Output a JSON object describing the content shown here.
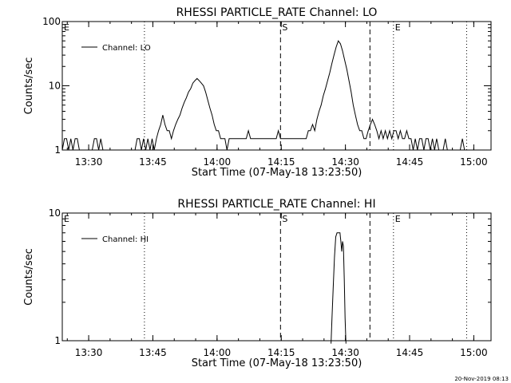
{
  "footer_text": "20-Nov-2019 08:13",
  "chart_data": [
    {
      "type": "line",
      "title": "RHESSI PARTICLE_RATE Channel: LO",
      "xlabel": "Start Time (07-May-18 13:23:50)",
      "ylabel": "Counts/sec",
      "x_unit": "minutes after 13:23:50",
      "xlim": [
        0,
        100.2
      ],
      "ylim": [
        1,
        100
      ],
      "yscale": "log",
      "x_tick_labels": [
        "13:30",
        "13:45",
        "14:00",
        "14:15",
        "14:30",
        "14:45",
        "15:00"
      ],
      "x_tick_values": [
        6.17,
        21.17,
        36.17,
        51.17,
        66.17,
        81.17,
        96.17
      ],
      "y_tick_labels": [
        "1",
        "10",
        "100"
      ],
      "y_tick_values": [
        1,
        10,
        100
      ],
      "legend": {
        "label": "Channel: LO",
        "placement": "top-left"
      },
      "markers": [
        {
          "label": "E",
          "x": 0,
          "style": "none"
        },
        {
          "label": "",
          "x": 19.2,
          "style": "dotted"
        },
        {
          "label": "S",
          "x": 51.0,
          "style": "dashed"
        },
        {
          "label": "",
          "x": 71.9,
          "style": "dashed"
        },
        {
          "label": "E",
          "x": 77.4,
          "style": "dotted"
        },
        {
          "label": "",
          "x": 94.5,
          "style": "dotted"
        }
      ],
      "series": [
        {
          "values": [
            [
              0,
              1
            ],
            [
              0.5,
              1.5
            ],
            [
              1,
              1.5
            ],
            [
              1.5,
              1
            ],
            [
              2,
              1.5
            ],
            [
              2.5,
              1
            ],
            [
              3,
              1.5
            ],
            [
              3.5,
              1.5
            ],
            [
              4,
              1
            ],
            [
              5,
              1
            ],
            [
              6,
              1
            ],
            [
              7,
              1
            ],
            [
              7.5,
              1.5
            ],
            [
              8,
              1.5
            ],
            [
              8.5,
              1
            ],
            [
              9,
              1.5
            ],
            [
              9.5,
              1
            ],
            [
              10,
              1
            ],
            [
              11,
              1
            ],
            [
              12,
              1
            ],
            [
              13,
              1
            ],
            [
              14,
              1
            ],
            [
              15,
              1
            ],
            [
              16,
              1
            ],
            [
              17,
              1
            ],
            [
              17.5,
              1.5
            ],
            [
              18,
              1.5
            ],
            [
              18.5,
              1
            ],
            [
              19,
              1.5
            ],
            [
              19.5,
              1
            ],
            [
              20,
              1.5
            ],
            [
              20.5,
              1
            ],
            [
              21,
              1.5
            ],
            [
              21.5,
              1
            ],
            [
              22,
              1.5
            ],
            [
              22.5,
              2
            ],
            [
              23,
              2.5
            ],
            [
              23.5,
              3.5
            ],
            [
              24,
              2.5
            ],
            [
              24.5,
              2
            ],
            [
              25,
              2
            ],
            [
              25.5,
              1.5
            ],
            [
              26,
              2
            ],
            [
              26.5,
              2.5
            ],
            [
              27,
              3
            ],
            [
              27.5,
              3.5
            ],
            [
              28,
              4.5
            ],
            [
              28.5,
              5.5
            ],
            [
              29,
              6.5
            ],
            [
              29.5,
              8
            ],
            [
              30,
              9
            ],
            [
              30.5,
              11
            ],
            [
              31,
              12
            ],
            [
              31.5,
              13
            ],
            [
              32,
              12
            ],
            [
              32.5,
              11
            ],
            [
              33,
              10
            ],
            [
              33.5,
              8
            ],
            [
              34,
              6
            ],
            [
              34.5,
              4.5
            ],
            [
              35,
              3.5
            ],
            [
              35.5,
              2.5
            ],
            [
              36,
              2
            ],
            [
              36.5,
              2
            ],
            [
              37,
              1.5
            ],
            [
              37.5,
              1.5
            ],
            [
              38,
              1.5
            ],
            [
              38.5,
              1
            ],
            [
              39,
              1.5
            ],
            [
              40,
              1.5
            ],
            [
              41,
              1.5
            ],
            [
              42,
              1.5
            ],
            [
              43,
              1.5
            ],
            [
              43.5,
              2
            ],
            [
              44,
              1.5
            ],
            [
              45,
              1.5
            ],
            [
              46,
              1.5
            ],
            [
              47,
              1.5
            ],
            [
              48,
              1.5
            ],
            [
              49,
              1.5
            ],
            [
              50,
              1.5
            ],
            [
              50.5,
              2
            ],
            [
              51,
              1.5
            ],
            [
              52,
              1.5
            ],
            [
              53,
              1.5
            ],
            [
              54,
              1.5
            ],
            [
              55,
              1.5
            ],
            [
              56,
              1.5
            ],
            [
              57,
              1.5
            ],
            [
              57.5,
              2
            ],
            [
              58,
              2
            ],
            [
              58.5,
              2.5
            ],
            [
              59,
              2
            ],
            [
              59.5,
              3
            ],
            [
              60,
              4
            ],
            [
              60.5,
              5
            ],
            [
              61,
              7
            ],
            [
              61.5,
              9
            ],
            [
              62,
              12
            ],
            [
              62.5,
              16
            ],
            [
              63,
              22
            ],
            [
              63.5,
              30
            ],
            [
              64,
              40
            ],
            [
              64.5,
              50
            ],
            [
              65,
              45
            ],
            [
              65.5,
              35
            ],
            [
              66,
              25
            ],
            [
              66.5,
              18
            ],
            [
              67,
              12
            ],
            [
              67.5,
              8
            ],
            [
              68,
              5
            ],
            [
              68.5,
              3.5
            ],
            [
              69,
              2.5
            ],
            [
              69.5,
              2
            ],
            [
              70,
              2
            ],
            [
              70.5,
              1.5
            ],
            [
              71,
              1.5
            ],
            [
              71.5,
              2
            ],
            [
              72,
              2.5
            ],
            [
              72.5,
              3
            ],
            [
              73,
              2.5
            ],
            [
              73.5,
              2
            ],
            [
              74,
              1.5
            ],
            [
              74.5,
              2
            ],
            [
              75,
              1.5
            ],
            [
              75.5,
              2
            ],
            [
              76,
              1.5
            ],
            [
              76.5,
              2
            ],
            [
              77,
              1.5
            ],
            [
              77.5,
              2
            ],
            [
              78,
              2
            ],
            [
              78.5,
              1.5
            ],
            [
              79,
              2
            ],
            [
              79.5,
              1.5
            ],
            [
              80,
              1.5
            ],
            [
              80.5,
              2
            ],
            [
              81,
              1.5
            ],
            [
              81.5,
              1.5
            ],
            [
              82,
              1
            ],
            [
              82.5,
              1.5
            ],
            [
              83,
              1
            ],
            [
              83.5,
              1.5
            ],
            [
              84,
              1.5
            ],
            [
              84.5,
              1
            ],
            [
              85,
              1.5
            ],
            [
              85.5,
              1.5
            ],
            [
              86,
              1
            ],
            [
              86.5,
              1.5
            ],
            [
              87,
              1
            ],
            [
              87.5,
              1.5
            ],
            [
              88,
              1
            ],
            [
              88.5,
              1
            ],
            [
              89,
              1
            ],
            [
              89.5,
              1.5
            ],
            [
              90,
              1
            ],
            [
              91,
              1
            ],
            [
              92,
              1
            ],
            [
              93,
              1
            ],
            [
              93.5,
              1.5
            ],
            [
              94,
              1
            ],
            [
              95,
              1
            ],
            [
              96,
              1
            ],
            [
              97,
              1
            ],
            [
              98,
              1
            ],
            [
              99,
              1
            ],
            [
              100,
              1
            ]
          ]
        }
      ]
    },
    {
      "type": "line",
      "title": "RHESSI PARTICLE_RATE Channel: HI",
      "xlabel": "Start Time (07-May-18 13:23:50)",
      "ylabel": "Counts/sec",
      "x_unit": "minutes after 13:23:50",
      "xlim": [
        0,
        100.2
      ],
      "ylim": [
        1,
        10
      ],
      "yscale": "log",
      "x_tick_labels": [
        "13:30",
        "13:45",
        "14:00",
        "14:15",
        "14:30",
        "14:45",
        "15:00"
      ],
      "x_tick_values": [
        6.17,
        21.17,
        36.17,
        51.17,
        66.17,
        81.17,
        96.17
      ],
      "y_tick_labels": [
        "1",
        "10"
      ],
      "y_tick_values": [
        1,
        10
      ],
      "legend": {
        "label": "Channel: HI",
        "placement": "top-left"
      },
      "markers": [
        {
          "label": "E",
          "x": 0,
          "style": "none"
        },
        {
          "label": "",
          "x": 19.2,
          "style": "dotted"
        },
        {
          "label": "S",
          "x": 51.0,
          "style": "dashed"
        },
        {
          "label": "",
          "x": 71.9,
          "style": "dashed"
        },
        {
          "label": "E",
          "x": 77.4,
          "style": "dotted"
        },
        {
          "label": "",
          "x": 94.5,
          "style": "dotted"
        }
      ],
      "series": [
        {
          "values": [
            [
              62.8,
              0.95
            ],
            [
              63.0,
              1.4
            ],
            [
              63.3,
              2.5
            ],
            [
              63.6,
              4.5
            ],
            [
              63.9,
              6.5
            ],
            [
              64.2,
              7
            ],
            [
              64.6,
              7
            ],
            [
              64.9,
              7
            ],
            [
              65.1,
              6
            ],
            [
              65.3,
              5
            ],
            [
              65.5,
              6
            ],
            [
              65.7,
              5.5
            ],
            [
              65.9,
              3
            ],
            [
              66.1,
              1.5
            ],
            [
              66.3,
              0.95
            ]
          ]
        }
      ]
    }
  ]
}
